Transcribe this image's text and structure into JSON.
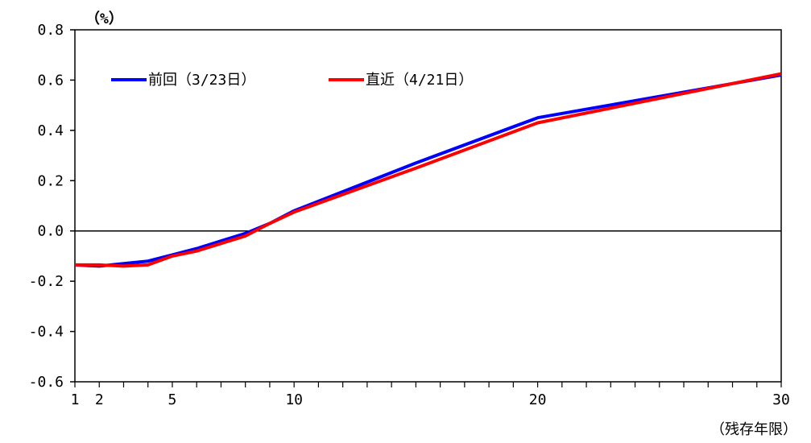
{
  "chart_data": {
    "type": "line",
    "title": "",
    "ylabel": "（%）",
    "xlabel": "（残存年限）",
    "xlim": [
      1,
      30
    ],
    "ylim": [
      -0.6,
      0.8
    ],
    "y_ticks": [
      -0.6,
      -0.4,
      -0.2,
      0.0,
      0.2,
      0.4,
      0.6,
      0.8
    ],
    "y_tick_labels": [
      "-0.6",
      "-0.4",
      "-0.2",
      "0.0",
      "0.2",
      "0.4",
      "0.6",
      "0.8"
    ],
    "x_ticks_labeled": [
      1,
      2,
      5,
      10,
      20,
      30
    ],
    "x_tick_labels": [
      "1",
      "2",
      "5",
      "10",
      "20",
      "30"
    ],
    "x_minor_ticks": [
      1,
      2,
      3,
      4,
      5,
      6,
      7,
      8,
      9,
      10,
      11,
      12,
      13,
      14,
      15,
      16,
      17,
      18,
      19,
      20,
      21,
      22,
      23,
      24,
      25,
      26,
      27,
      28,
      29,
      30
    ],
    "grid": false,
    "zero_line": true,
    "legend_position": "top-left",
    "x": [
      1,
      2,
      3,
      4,
      5,
      6,
      7,
      8,
      9,
      10,
      15,
      20,
      30
    ],
    "series": [
      {
        "name": "前回（3/23日）",
        "color": "#0000ff",
        "values": [
          -0.135,
          -0.14,
          -0.13,
          -0.12,
          -0.095,
          -0.07,
          -0.04,
          -0.01,
          0.03,
          0.08,
          0.27,
          0.45,
          0.62
        ]
      },
      {
        "name": "直近（4/21日）",
        "color": "#ff0000",
        "values": [
          -0.135,
          -0.135,
          -0.14,
          -0.135,
          -0.1,
          -0.08,
          -0.05,
          -0.02,
          0.03,
          0.075,
          0.25,
          0.43,
          0.625
        ]
      }
    ]
  }
}
